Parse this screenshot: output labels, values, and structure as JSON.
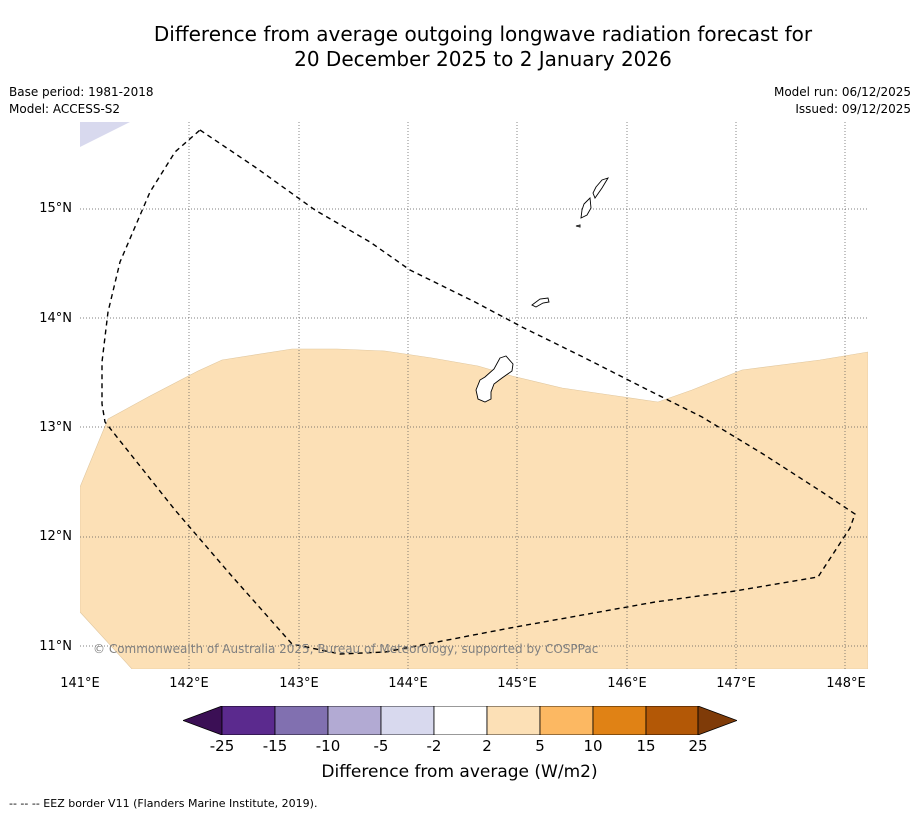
{
  "title": {
    "line1": "Difference from average outgoing longwave radiation forecast for",
    "line2": "20 December 2025 to 2 January 2026"
  },
  "meta_left": {
    "base_period": "Base period: 1981-2018",
    "model": "Model: ACCESS-S2"
  },
  "meta_right": {
    "model_run": "Model run: 06/12/2025",
    "issued": "Issued: 09/12/2025"
  },
  "map": {
    "lat_labels": [
      "15°N",
      "14°N",
      "13°N",
      "12°N",
      "11°N"
    ],
    "lon_labels": [
      "141°E",
      "142°E",
      "143°E",
      "144°E",
      "145°E",
      "146°E",
      "147°E",
      "148°E"
    ],
    "copyright": "© Commonwealth of Australia 2025, Bureau of Meteorology, supported by COSPPac",
    "colors": {
      "anomaly_2_to_5": "#fce0b6",
      "anomaly_neg5_to_neg2": "#d8d9ee",
      "coastline": "#000000",
      "eez_border": "#000000"
    }
  },
  "colorbar": {
    "labels": [
      "-25",
      "-15",
      "-10",
      "-5",
      "-2",
      "2",
      "5",
      "10",
      "15",
      "25"
    ],
    "colors": [
      "#3b0f55",
      "#5b2a8e",
      "#8170b0",
      "#b2aad3",
      "#d8d9ee",
      "#ffffff",
      "#fce0b6",
      "#fcb862",
      "#e08215",
      "#b35806",
      "#7f3b08"
    ],
    "title": "Difference from average (W/m2)"
  },
  "footnote": "--  --  -- EEZ border V11 (Flanders Marine Institute, 2019)."
}
